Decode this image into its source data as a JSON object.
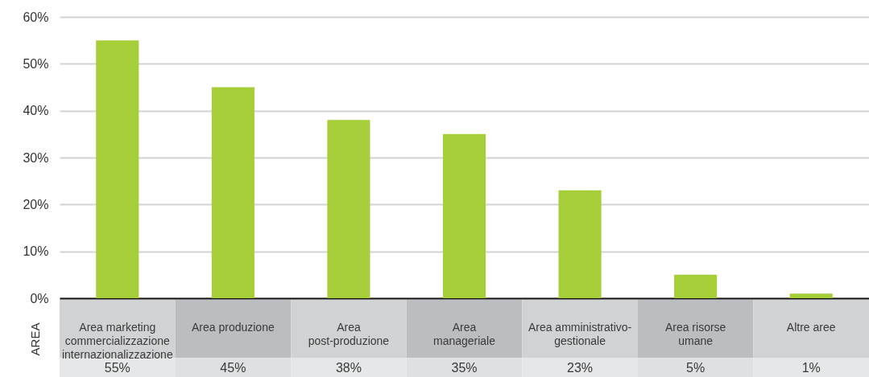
{
  "chart_data": {
    "type": "bar",
    "categories": [
      "Area marketing\ncommercializzazione\ninternazionalizzazione",
      "Area produzione",
      "Area\npost-produzione",
      "Area\nmanageriale",
      "Area amministrativo-\ngestionale",
      "Area risorse\numane",
      "Altre aree"
    ],
    "values": [
      55,
      45,
      38,
      35,
      23,
      5,
      1
    ],
    "value_labels": [
      "55%",
      "45%",
      "38%",
      "35%",
      "23%",
      "5%",
      "1%"
    ],
    "color": "#a6ce39",
    "annotations": [
      "AREA"
    ],
    "ylim": [
      0,
      60
    ],
    "yticks": [
      {
        "value": 0,
        "label": "0%"
      },
      {
        "value": 10,
        "label": "10%"
      },
      {
        "value": 20,
        "label": "20%"
      },
      {
        "value": 30,
        "label": "30%"
      },
      {
        "value": 40,
        "label": "40%"
      },
      {
        "value": 50,
        "label": "50%"
      },
      {
        "value": 60,
        "label": "60%"
      }
    ],
    "grid": "y"
  }
}
